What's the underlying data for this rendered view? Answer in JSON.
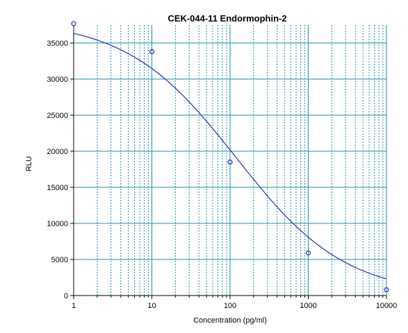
{
  "colors": {
    "background": "#ffffff",
    "grid": "#1a8fa5",
    "curve": "#2a2ab8",
    "points": "#2a2ab8",
    "axis": "#000000"
  },
  "chart_data": {
    "type": "scatter",
    "title": "CEK-044-11 Endormophin-2",
    "xlabel": "Concentration (pg/ml)",
    "ylabel": "RLU",
    "x_scale": "log",
    "xlim": [
      1,
      10000
    ],
    "ylim": [
      0,
      37500
    ],
    "x_ticks": [
      1,
      10,
      100,
      1000,
      10000
    ],
    "x_tick_labels": [
      "1",
      "10",
      "100",
      "1000",
      "10000"
    ],
    "y_ticks": [
      0,
      5000,
      10000,
      15000,
      20000,
      25000,
      30000,
      35000
    ],
    "y_tick_labels": [
      "0",
      "5000",
      "10000",
      "15000",
      "20000",
      "25000",
      "30000",
      "35000"
    ],
    "grid": true,
    "series": [
      {
        "kind": "points",
        "x": [
          1,
          10,
          100,
          1000,
          10000
        ],
        "y": [
          37700,
          33800,
          18500,
          5900,
          800
        ]
      },
      {
        "kind": "fitted-curve",
        "x": [
          1,
          2,
          5,
          10,
          20,
          50,
          100,
          200,
          500,
          1000,
          2000,
          5000,
          10000
        ],
        "y": [
          37800,
          37100,
          35300,
          33000,
          29600,
          23600,
          18800,
          14300,
          9100,
          6200,
          4200,
          2300,
          1100
        ]
      }
    ]
  }
}
